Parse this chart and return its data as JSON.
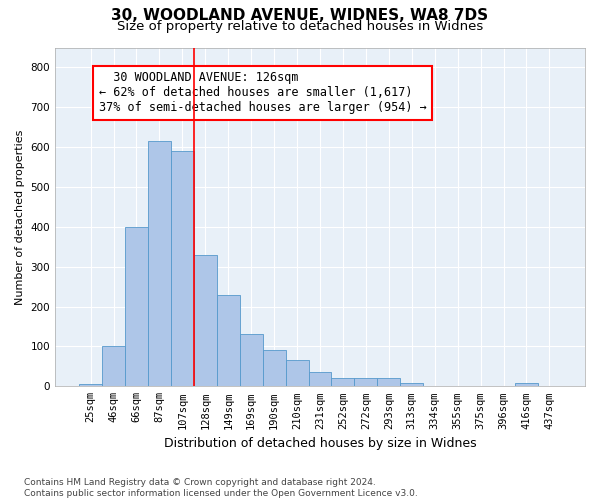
{
  "title_line1": "30, WOODLAND AVENUE, WIDNES, WA8 7DS",
  "title_line2": "Size of property relative to detached houses in Widnes",
  "xlabel": "Distribution of detached houses by size in Widnes",
  "ylabel": "Number of detached properties",
  "footnote": "Contains HM Land Registry data © Crown copyright and database right 2024.\nContains public sector information licensed under the Open Government Licence v3.0.",
  "bar_labels": [
    "25sqm",
    "46sqm",
    "66sqm",
    "87sqm",
    "107sqm",
    "128sqm",
    "149sqm",
    "169sqm",
    "190sqm",
    "210sqm",
    "231sqm",
    "252sqm",
    "272sqm",
    "293sqm",
    "313sqm",
    "334sqm",
    "355sqm",
    "375sqm",
    "396sqm",
    "416sqm",
    "437sqm"
  ],
  "bar_values": [
    5,
    102,
    400,
    615,
    590,
    330,
    230,
    130,
    90,
    65,
    35,
    22,
    20,
    20,
    8,
    0,
    0,
    0,
    0,
    8,
    0
  ],
  "bar_color": "#aec6e8",
  "bar_edge_color": "#5599cc",
  "ylim": [
    0,
    850
  ],
  "yticks": [
    0,
    100,
    200,
    300,
    400,
    500,
    600,
    700,
    800
  ],
  "vline_color": "red",
  "annotation_box_text": "  30 WOODLAND AVENUE: 126sqm\n← 62% of detached houses are smaller (1,617)\n37% of semi-detached houses are larger (954) →",
  "bg_color": "#e8f0f8",
  "grid_color": "white",
  "title_fontsize": 11,
  "subtitle_fontsize": 9.5,
  "tick_fontsize": 7.5,
  "annotation_fontsize": 8.5,
  "ylabel_fontsize": 8,
  "xlabel_fontsize": 9
}
